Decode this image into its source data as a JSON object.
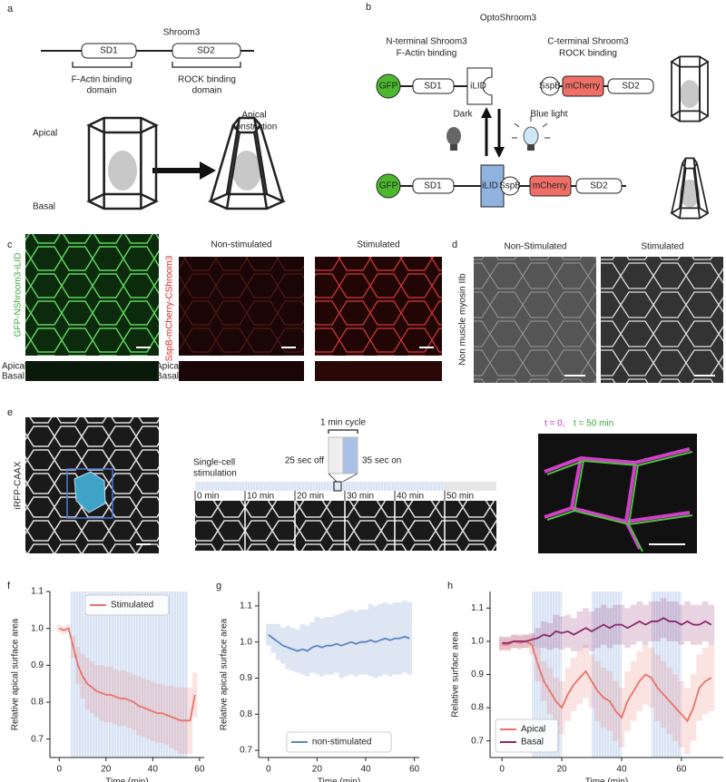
{
  "panel_a": {
    "label": "a",
    "title": "Shroom3",
    "domains": [
      "SD1",
      "SD2"
    ],
    "domain_notes": [
      [
        "F-Actin binding",
        "domain"
      ],
      [
        "ROCK binding",
        "domain"
      ]
    ],
    "apical": "Apical",
    "basal": "Basal",
    "arrow_label": [
      "Apical",
      "constriction"
    ]
  },
  "panel_b": {
    "label": "b",
    "title": "OptoShroom3",
    "n_terminal": [
      "N-terminal Shroom3",
      "F-Actin binding"
    ],
    "c_terminal": [
      "C-terminal Shroom3",
      "ROCK binding"
    ],
    "parts": {
      "gfp": "GFP",
      "sd1": "SD1",
      "ilid": "iLID",
      "sspb": "SspB",
      "mcherry": "mCherry",
      "sd2": "SD2"
    },
    "dark": "Dark",
    "blue_light": "Blue light"
  },
  "panel_c": {
    "label": "c",
    "green_channel": "GFP-NShroom3-iLID",
    "red_channel": "SspB-mCherry-CShroom3",
    "columns": [
      "Non-stimulated",
      "Stimulated"
    ],
    "apical": "Apical",
    "basal": "Basal"
  },
  "panel_d": {
    "label": "d",
    "columns": [
      "Non-Stimulated",
      "Stimulated"
    ],
    "stain": "Non muscle myosin IIb"
  },
  "panel_e": {
    "label": "e",
    "channel": "iRFP-CAAX",
    "cycle": "1 min cycle",
    "off": "25 sec off",
    "on": "35 sec on",
    "stimulation": [
      "Single-cell",
      "stimulation"
    ],
    "times": [
      "0 min",
      "10 min",
      "20 min",
      "30 min",
      "40 min",
      "50 min"
    ],
    "overlay": [
      "t = 0,",
      "t =  50 min"
    ]
  },
  "chart_data": [
    {
      "type": "line",
      "label": "f",
      "xlabel": "Time (min)",
      "ylabel": "Relative apical surface area",
      "legend": "upper center",
      "xlim": [
        -4,
        62
      ],
      "ylim": [
        0.65,
        1.1
      ],
      "xticks": [
        0,
        20,
        40,
        60
      ],
      "yticks": [
        0.7,
        0.8,
        0.9,
        {
          "value": 1,
          "label": "1.0"
        },
        1.1
      ],
      "stimulation": [
        {
          "start": 5,
          "end": 55
        }
      ],
      "x": [
        0,
        2,
        4,
        6,
        8,
        10,
        12,
        14,
        16,
        18,
        20,
        22,
        24,
        26,
        28,
        30,
        32,
        34,
        36,
        38,
        40,
        42,
        44,
        46,
        48,
        50,
        52,
        54,
        56,
        58
      ],
      "series": [
        {
          "name": "Stimulated",
          "color": "#e8736a",
          "values": [
            1.0,
            0.995,
            1.0,
            0.95,
            0.9,
            0.87,
            0.85,
            0.84,
            0.83,
            0.825,
            0.82,
            0.82,
            0.815,
            0.81,
            0.81,
            0.805,
            0.8,
            0.79,
            0.785,
            0.78,
            0.775,
            0.77,
            0.77,
            0.765,
            0.76,
            0.755,
            0.75,
            0.75,
            0.75,
            0.82
          ],
          "error": [
            0.01,
            0.01,
            0.01,
            0.03,
            0.05,
            0.06,
            0.07,
            0.07,
            0.07,
            0.075,
            0.075,
            0.075,
            0.075,
            0.075,
            0.075,
            0.075,
            0.075,
            0.08,
            0.08,
            0.08,
            0.08,
            0.08,
            0.08,
            0.08,
            0.085,
            0.085,
            0.09,
            0.09,
            0.09,
            0.06
          ]
        }
      ]
    },
    {
      "type": "line",
      "label": "g",
      "xlabel": "Time (min)",
      "ylabel": "Relative apical surface area",
      "legend": "lower center",
      "xlim": [
        -4,
        62
      ],
      "ylim": [
        0.68,
        1.14
      ],
      "xticks": [
        0,
        20,
        40,
        60
      ],
      "yticks": [
        0.7,
        0.8,
        0.9,
        {
          "value": 1,
          "label": "1.0"
        },
        1.1
      ],
      "x": [
        0,
        2,
        4,
        6,
        8,
        10,
        12,
        14,
        16,
        18,
        20,
        22,
        24,
        26,
        28,
        30,
        32,
        34,
        36,
        38,
        40,
        42,
        44,
        46,
        48,
        50,
        52,
        54,
        56,
        58
      ],
      "series": [
        {
          "name": "non-stimulated",
          "color": "#5b84c4",
          "values": [
            1.02,
            1.01,
            1.0,
            0.99,
            0.985,
            0.98,
            0.975,
            0.98,
            0.975,
            0.985,
            0.99,
            0.985,
            0.99,
            0.99,
            0.995,
            0.99,
            0.995,
            1.0,
            0.995,
            1.0,
            1.0,
            1.005,
            1.0,
            1.005,
            1.01,
            1.005,
            1.01,
            1.01,
            1.015,
            1.01
          ],
          "error": [
            0.03,
            0.04,
            0.05,
            0.05,
            0.06,
            0.06,
            0.06,
            0.07,
            0.07,
            0.07,
            0.08,
            0.08,
            0.08,
            0.08,
            0.08,
            0.09,
            0.09,
            0.09,
            0.09,
            0.09,
            0.09,
            0.1,
            0.1,
            0.1,
            0.1,
            0.1,
            0.1,
            0.1,
            0.1,
            0.1
          ]
        }
      ]
    },
    {
      "type": "line",
      "label": "h",
      "xlabel": "Time (min)",
      "ylabel": "Relative surface area",
      "legend": "lower left",
      "xlim": [
        -4,
        74
      ],
      "ylim": [
        0.65,
        1.15
      ],
      "xticks": [
        0,
        20,
        40,
        60
      ],
      "yticks": [
        0.7,
        0.8,
        0.9,
        {
          "value": 1,
          "label": "1.0"
        },
        1.1
      ],
      "stimulation": [
        {
          "start": 10,
          "end": 20
        },
        {
          "start": 30,
          "end": 40
        },
        {
          "start": 50,
          "end": 60
        }
      ],
      "x": [
        0,
        2,
        4,
        6,
        8,
        10,
        12,
        14,
        16,
        18,
        20,
        22,
        24,
        26,
        28,
        30,
        32,
        34,
        36,
        38,
        40,
        42,
        44,
        46,
        48,
        50,
        52,
        54,
        56,
        58,
        60,
        62,
        64,
        66,
        68,
        70
      ],
      "series": [
        {
          "name": "Apical",
          "color": "#e8736a",
          "values": [
            0.99,
            0.99,
            1.0,
            0.995,
            1.0,
            0.99,
            0.93,
            0.88,
            0.85,
            0.82,
            0.8,
            0.84,
            0.87,
            0.89,
            0.91,
            0.88,
            0.85,
            0.83,
            0.82,
            0.79,
            0.77,
            0.82,
            0.85,
            0.88,
            0.9,
            0.89,
            0.86,
            0.84,
            0.82,
            0.8,
            0.78,
            0.76,
            0.8,
            0.86,
            0.88,
            0.89
          ],
          "error": [
            0.02,
            0.02,
            0.02,
            0.02,
            0.02,
            0.03,
            0.05,
            0.06,
            0.07,
            0.07,
            0.08,
            0.08,
            0.08,
            0.08,
            0.08,
            0.08,
            0.09,
            0.09,
            0.09,
            0.09,
            0.09,
            0.09,
            0.09,
            0.09,
            0.09,
            0.09,
            0.1,
            0.1,
            0.1,
            0.1,
            0.1,
            0.1,
            0.1,
            0.1,
            0.1,
            0.1
          ]
        },
        {
          "name": "Basal",
          "color": "#8b2a6b",
          "values": [
            0.995,
            0.995,
            1.0,
            1.0,
            1.0,
            1.005,
            1.01,
            1.02,
            1.015,
            1.03,
            1.025,
            1.03,
            1.02,
            1.03,
            1.04,
            1.03,
            1.04,
            1.05,
            1.04,
            1.05,
            1.05,
            1.04,
            1.05,
            1.06,
            1.05,
            1.06,
            1.06,
            1.07,
            1.06,
            1.06,
            1.05,
            1.06,
            1.05,
            1.05,
            1.06,
            1.05
          ],
          "error": [
            0.02,
            0.02,
            0.02,
            0.02,
            0.02,
            0.02,
            0.03,
            0.04,
            0.04,
            0.05,
            0.05,
            0.05,
            0.05,
            0.06,
            0.06,
            0.06,
            0.06,
            0.06,
            0.06,
            0.06,
            0.06,
            0.06,
            0.06,
            0.06,
            0.06,
            0.06,
            0.06,
            0.06,
            0.06,
            0.06,
            0.06,
            0.06,
            0.06,
            0.06,
            0.06,
            0.06
          ]
        }
      ]
    }
  ]
}
